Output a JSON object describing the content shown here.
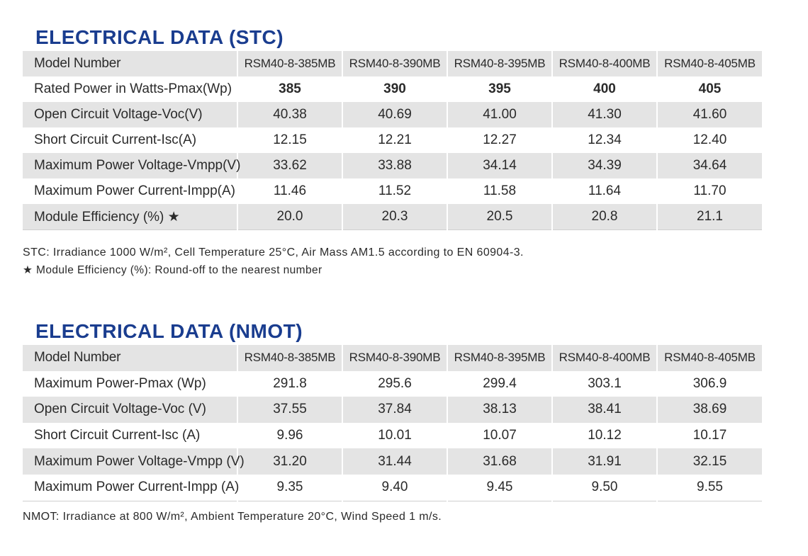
{
  "stc": {
    "title": "ELECTRICAL DATA (STC)",
    "header": [
      "Model Number",
      "RSM40-8-385MB",
      "RSM40-8-390MB",
      "RSM40-8-395MB",
      "RSM40-8-400MB",
      "RSM40-8-405MB"
    ],
    "rows": [
      {
        "label": "Rated Power in Watts-Pmax(Wp)",
        "values": [
          "385",
          "390",
          "395",
          "400",
          "405"
        ]
      },
      {
        "label": "Open Circuit Voltage-Voc(V)",
        "values": [
          "40.38",
          "40.69",
          "41.00",
          "41.30",
          "41.60"
        ]
      },
      {
        "label": "Short Circuit Current-Isc(A)",
        "values": [
          "12.15",
          "12.21",
          "12.27",
          "12.34",
          "12.40"
        ]
      },
      {
        "label": "Maximum Power Voltage-Vmpp(V)",
        "values": [
          "33.62",
          "33.88",
          "34.14",
          "34.39",
          "34.64"
        ]
      },
      {
        "label": "Maximum Power Current-Impp(A)",
        "values": [
          "11.46",
          "11.52",
          "11.58",
          "11.64",
          "11.70"
        ]
      },
      {
        "label": "Module Efficiency (%) ★",
        "values": [
          "20.0",
          "20.3",
          "20.5",
          "20.8",
          "21.1"
        ]
      }
    ],
    "note1": "STC: Irradiance 1000 W/m², Cell Temperature 25°C, Air Mass AM1.5 according to EN 60904-3.",
    "note2": "★ Module Efficiency (%): Round-off to the nearest number"
  },
  "nmot": {
    "title": "ELECTRICAL DATA (NMOT)",
    "header": [
      "Model Number",
      "RSM40-8-385MB",
      "RSM40-8-390MB",
      "RSM40-8-395MB",
      "RSM40-8-400MB",
      "RSM40-8-405MB"
    ],
    "rows": [
      {
        "label": "Maximum Power-Pmax (Wp)",
        "values": [
          "291.8",
          "295.6",
          "299.4",
          "303.1",
          "306.9"
        ]
      },
      {
        "label": "Open Circuit Voltage-Voc (V)",
        "values": [
          "37.55",
          "37.84",
          "38.13",
          "38.41",
          "38.69"
        ]
      },
      {
        "label": "Short Circuit Current-Isc (A)",
        "values": [
          "9.96",
          "10.01",
          "10.07",
          "10.12",
          "10.17"
        ]
      },
      {
        "label": "Maximum Power Voltage-Vmpp (V)",
        "values": [
          "31.20",
          "31.44",
          "31.68",
          "31.91",
          "32.15"
        ]
      },
      {
        "label": "Maximum Power Current-Impp (A)",
        "values": [
          "9.35",
          "9.40",
          "9.45",
          "9.50",
          "9.55"
        ]
      }
    ],
    "note": "NMOT: Irradiance at 800 W/m², Ambient Temperature 20°C, Wind Speed 1 m/s."
  },
  "colors": {
    "title": "#1a3d8f",
    "stripe": "#e4e4e4",
    "text": "#2a2a2a"
  }
}
